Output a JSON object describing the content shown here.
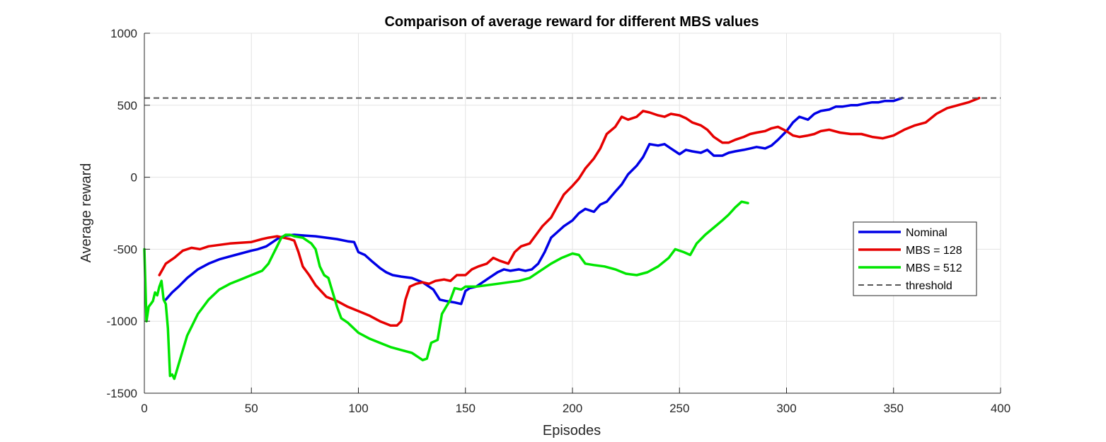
{
  "chart_data": {
    "type": "line",
    "title": "Comparison of average reward for different MBS values",
    "xlabel": "Episodes",
    "ylabel": "Average reward",
    "xlim": [
      0,
      400
    ],
    "ylim": [
      -1500,
      1000
    ],
    "xticks": [
      0,
      50,
      100,
      150,
      200,
      250,
      300,
      350,
      400
    ],
    "yticks": [
      -1500,
      -1000,
      -500,
      0,
      500,
      1000
    ],
    "grid": true,
    "legend_position": "right",
    "threshold": 550,
    "series": [
      {
        "name": "Nominal",
        "color": "#0000e6",
        "x": [
          10,
          13,
          16,
          20,
          25,
          30,
          35,
          40,
          45,
          50,
          53,
          57,
          60,
          63,
          66,
          70,
          75,
          80,
          85,
          90,
          95,
          98,
          100,
          103,
          106,
          110,
          113,
          116,
          120,
          125,
          130,
          133,
          135,
          138,
          141,
          145,
          148,
          150,
          152,
          155,
          158,
          161,
          165,
          168,
          171,
          175,
          178,
          181,
          184,
          187,
          190,
          193,
          196,
          200,
          203,
          206,
          210,
          213,
          216,
          220,
          223,
          226,
          230,
          233,
          236,
          240,
          243,
          246,
          250,
          253,
          256,
          260,
          263,
          266,
          270,
          273,
          276,
          280,
          283,
          286,
          290,
          293,
          296,
          300,
          303,
          306,
          310,
          313,
          316,
          320,
          323,
          326,
          330,
          333,
          336,
          340,
          343,
          346,
          350,
          354
        ],
        "y": [
          -850,
          -800,
          -760,
          -700,
          -640,
          -600,
          -570,
          -550,
          -530,
          -510,
          -500,
          -480,
          -450,
          -420,
          -405,
          -400,
          -405,
          -410,
          -420,
          -430,
          -445,
          -450,
          -520,
          -540,
          -580,
          -630,
          -660,
          -680,
          -690,
          -700,
          -730,
          -760,
          -780,
          -850,
          -860,
          -870,
          -880,
          -790,
          -770,
          -760,
          -730,
          -700,
          -660,
          -640,
          -650,
          -640,
          -650,
          -640,
          -600,
          -520,
          -420,
          -380,
          -340,
          -300,
          -250,
          -220,
          -240,
          -190,
          -170,
          -100,
          -50,
          20,
          80,
          140,
          230,
          220,
          230,
          200,
          160,
          190,
          180,
          170,
          190,
          150,
          150,
          170,
          180,
          190,
          200,
          210,
          200,
          220,
          260,
          320,
          380,
          420,
          400,
          440,
          460,
          470,
          490,
          490,
          500,
          500,
          510,
          520,
          520,
          530,
          530,
          550
        ]
      },
      {
        "name": "MBS = 128",
        "color": "#e60000",
        "x": [
          7,
          10,
          14,
          18,
          22,
          26,
          30,
          35,
          40,
          45,
          50,
          55,
          58,
          62,
          65,
          68,
          70,
          72,
          74,
          77,
          80,
          85,
          90,
          95,
          100,
          105,
          110,
          115,
          118,
          120,
          122,
          124,
          127,
          130,
          133,
          136,
          140,
          143,
          146,
          150,
          153,
          156,
          160,
          163,
          166,
          170,
          173,
          176,
          180,
          183,
          186,
          190,
          193,
          196,
          200,
          203,
          206,
          210,
          213,
          216,
          220,
          223,
          226,
          230,
          233,
          236,
          240,
          243,
          246,
          250,
          253,
          256,
          260,
          263,
          266,
          270,
          273,
          276,
          280,
          283,
          286,
          290,
          293,
          296,
          300,
          303,
          306,
          310,
          313,
          316,
          320,
          325,
          330,
          335,
          340,
          345,
          350,
          355,
          360,
          365,
          370,
          375,
          380,
          385,
          390
        ],
        "y": [
          -680,
          -600,
          -560,
          -510,
          -490,
          -500,
          -480,
          -470,
          -460,
          -455,
          -450,
          -430,
          -420,
          -410,
          -420,
          -430,
          -440,
          -520,
          -620,
          -680,
          -750,
          -830,
          -860,
          -900,
          -930,
          -960,
          -1000,
          -1030,
          -1030,
          -1000,
          -850,
          -760,
          -740,
          -730,
          -740,
          -720,
          -710,
          -720,
          -680,
          -680,
          -640,
          -620,
          -600,
          -560,
          -580,
          -600,
          -520,
          -480,
          -460,
          -400,
          -340,
          -280,
          -200,
          -120,
          -60,
          -10,
          60,
          130,
          200,
          300,
          350,
          420,
          400,
          420,
          460,
          450,
          430,
          420,
          440,
          430,
          410,
          380,
          360,
          330,
          280,
          240,
          240,
          260,
          280,
          300,
          310,
          320,
          340,
          350,
          320,
          290,
          280,
          290,
          300,
          320,
          330,
          310,
          300,
          300,
          280,
          270,
          290,
          330,
          360,
          380,
          440,
          480,
          500,
          520,
          550
        ]
      },
      {
        "name": "MBS = 512",
        "color": "#00e600",
        "x": [
          0,
          1,
          2,
          3,
          4,
          5,
          6,
          7,
          8,
          9,
          10,
          11,
          12,
          13,
          14,
          15,
          17,
          20,
          25,
          30,
          35,
          40,
          45,
          50,
          55,
          58,
          60,
          62,
          64,
          66,
          68,
          70,
          72,
          74,
          76,
          78,
          80,
          82,
          84,
          86,
          88,
          90,
          92,
          95,
          100,
          105,
          110,
          115,
          120,
          125,
          128,
          130,
          132,
          134,
          137,
          139,
          141,
          143,
          145,
          148,
          150,
          155,
          160,
          165,
          170,
          175,
          180,
          185,
          190,
          195,
          200,
          203,
          206,
          210,
          215,
          220,
          225,
          230,
          235,
          240,
          245,
          248,
          252,
          255,
          258,
          262,
          266,
          270,
          273,
          276,
          279,
          282
        ],
        "y": [
          -500,
          -1000,
          -900,
          -880,
          -860,
          -800,
          -820,
          -760,
          -720,
          -850,
          -880,
          -1050,
          -1380,
          -1370,
          -1400,
          -1350,
          -1250,
          -1100,
          -950,
          -850,
          -780,
          -740,
          -710,
          -680,
          -650,
          -600,
          -540,
          -480,
          -420,
          -400,
          -400,
          -410,
          -415,
          -420,
          -440,
          -460,
          -500,
          -620,
          -680,
          -700,
          -800,
          -900,
          -980,
          -1010,
          -1080,
          -1120,
          -1150,
          -1180,
          -1200,
          -1220,
          -1250,
          -1270,
          -1260,
          -1150,
          -1130,
          -950,
          -900,
          -850,
          -770,
          -780,
          -760,
          -760,
          -750,
          -740,
          -730,
          -720,
          -700,
          -650,
          -600,
          -560,
          -530,
          -540,
          -600,
          -610,
          -620,
          -640,
          -670,
          -680,
          -660,
          -620,
          -560,
          -500,
          -520,
          -540,
          -460,
          -400,
          -350,
          -300,
          -260,
          -210,
          -170,
          -180
        ]
      }
    ],
    "legend": [
      "Nominal",
      "MBS = 128",
      "MBS = 512",
      "threshold"
    ],
    "threshold_color": "#555555"
  }
}
